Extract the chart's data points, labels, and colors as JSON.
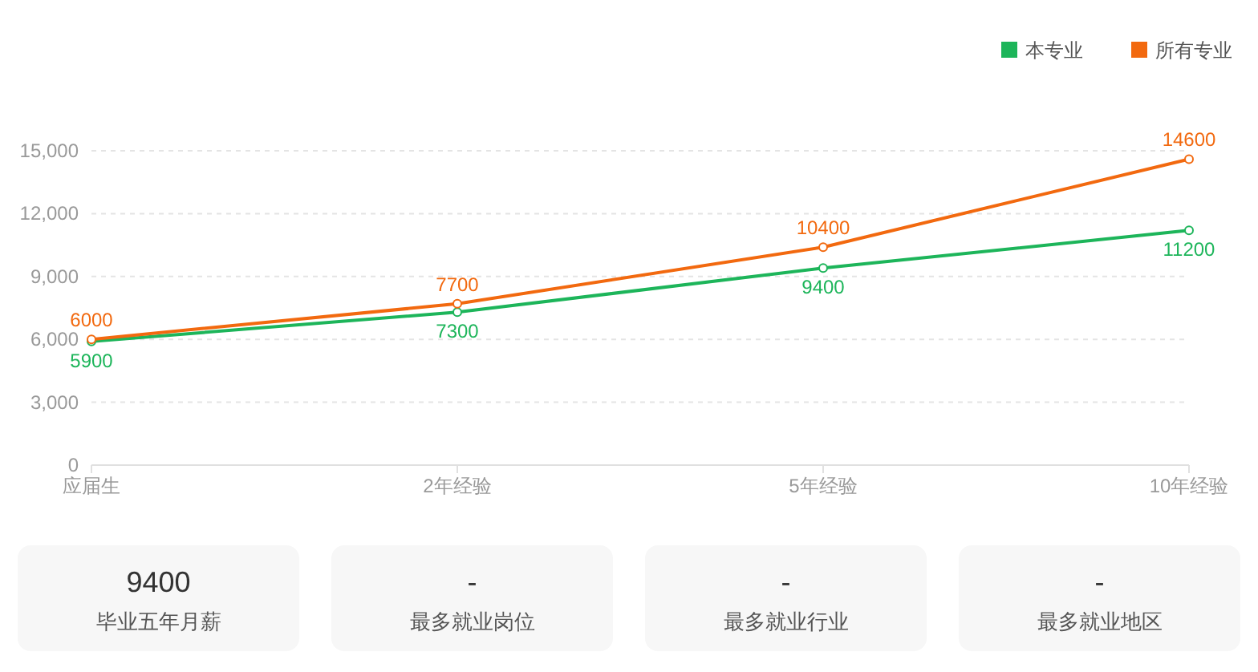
{
  "chart_data": [
    {
      "type": "line",
      "categories": [
        "应届生",
        "2年经验",
        "5年经验",
        "10年经验"
      ],
      "series": [
        {
          "name": "本专业",
          "color": "#1db55a",
          "values": [
            5900,
            7300,
            9400,
            11200
          ]
        },
        {
          "name": "所有专业",
          "color": "#f2690f",
          "values": [
            6000,
            7700,
            10400,
            14600
          ]
        }
      ],
      "ylim": [
        0,
        15000
      ],
      "yticks": [
        0,
        {
          "value": 3000,
          "label": "3,000"
        },
        {
          "value": 6000,
          "label": "6,000"
        },
        {
          "value": 9000,
          "label": "9,000"
        },
        {
          "value": 12000,
          "label": "12,000"
        },
        {
          "value": 15000,
          "label": "15,000"
        }
      ],
      "grid": "y",
      "legend": "top right",
      "marker": "circle",
      "line_style": "solid",
      "data_labels": true
    },
    {
      "type": "other",
      "categories": [
        "毕业五年月薪",
        "最多就业岗位",
        "最多就业行业",
        "最多就业地区"
      ],
      "value_labels": [
        "9400",
        "-",
        "-",
        "-"
      ]
    }
  ]
}
